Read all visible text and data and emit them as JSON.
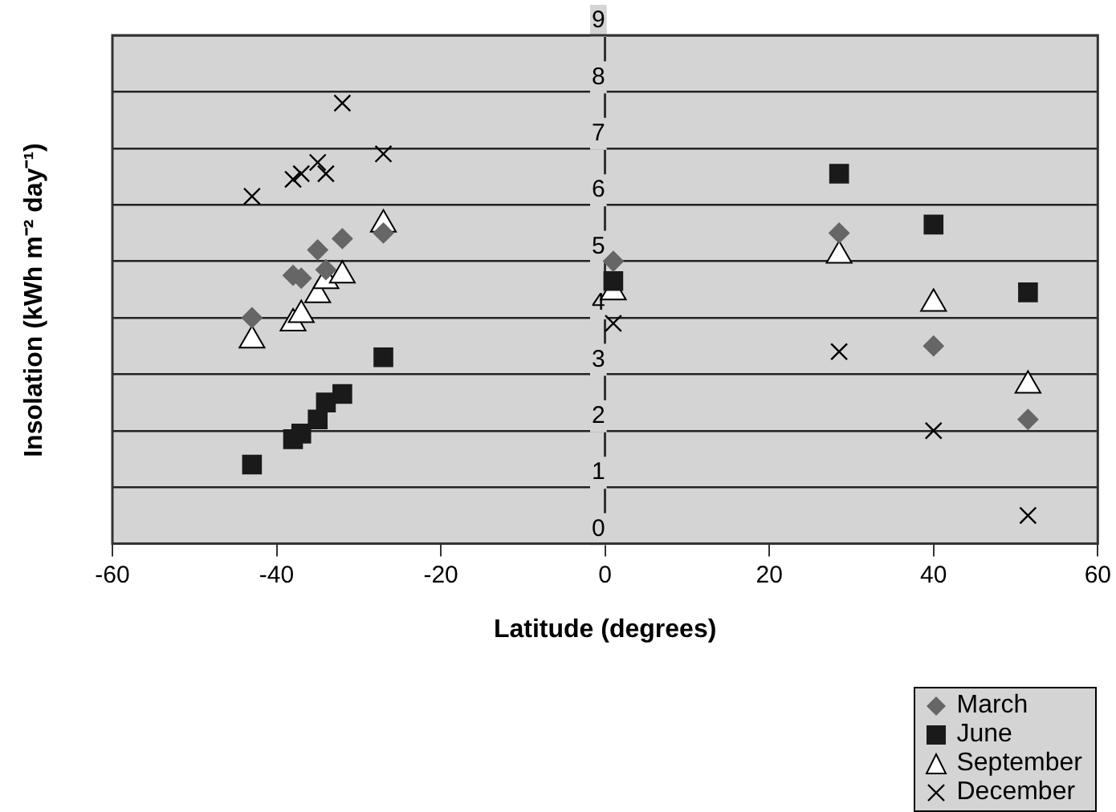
{
  "chart_data": {
    "type": "scatter",
    "xlabel": "Latitude (degrees)",
    "ylabel": "Insolation (kWh m⁻² day⁻¹)",
    "xlim": [
      -60,
      60
    ],
    "xticks": [
      -60,
      -40,
      -20,
      0,
      20,
      40,
      60
    ],
    "ylim": [
      0,
      9
    ],
    "yticks": [
      0,
      1,
      2,
      3,
      4,
      5,
      6,
      7,
      8,
      9
    ],
    "grid": "y",
    "legend": "bottom right",
    "x": [
      -43,
      -38,
      -37,
      -35,
      -34,
      -32,
      -27,
      1,
      28.5,
      40,
      51.5
    ],
    "series": [
      {
        "name": "March",
        "color": "#666666",
        "marker": "diamond",
        "values": [
          4.0,
          4.75,
          4.7,
          5.2,
          4.85,
          5.4,
          5.5,
          5.0,
          5.5,
          3.5,
          2.2
        ]
      },
      {
        "name": "June",
        "color": "#1a1a1a",
        "marker": "square",
        "values": [
          1.4,
          1.85,
          1.95,
          2.2,
          2.5,
          2.65,
          3.3,
          4.65,
          6.55,
          5.65,
          4.45
        ]
      },
      {
        "name": "September",
        "color": "#ffffff",
        "marker": "triangle",
        "values": [
          3.6,
          3.9,
          4.05,
          4.4,
          4.65,
          4.75,
          5.65,
          4.45,
          5.1,
          4.25,
          2.8
        ]
      },
      {
        "name": "December",
        "color": "#000000",
        "marker": "cross",
        "values": [
          6.15,
          6.45,
          6.55,
          6.75,
          6.55,
          7.8,
          6.9,
          3.9,
          3.4,
          2.0,
          0.5
        ]
      }
    ]
  }
}
